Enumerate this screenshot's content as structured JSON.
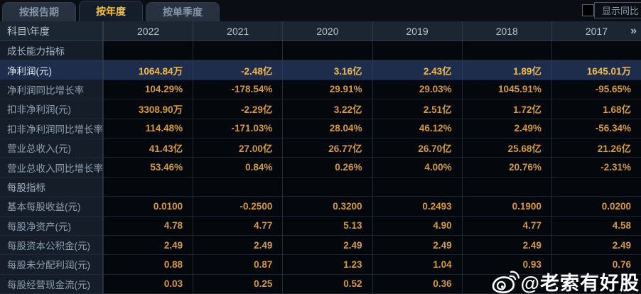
{
  "tabs": [
    {
      "label": "按报告期",
      "active": false
    },
    {
      "label": "按年度",
      "active": true
    },
    {
      "label": "按单季度",
      "active": false
    }
  ],
  "yoy_toggle": {
    "label": "显示同比",
    "checked": false
  },
  "table": {
    "corner_header": "科目\\年度",
    "years": [
      "2022",
      "2021",
      "2020",
      "2019",
      "2018",
      "2017"
    ],
    "more_years_icon": "»",
    "rows": [
      {
        "type": "section",
        "highlight": false,
        "label": "成长能力指标",
        "values": [
          "",
          "",
          "",
          "",
          "",
          ""
        ]
      },
      {
        "type": "data",
        "highlight": true,
        "label": "净利润(元)",
        "values": [
          "1064.84万",
          "-2.48亿",
          "3.16亿",
          "2.43亿",
          "1.89亿",
          "1645.01万"
        ]
      },
      {
        "type": "data",
        "highlight": false,
        "label": "净利润同比增长率",
        "values": [
          "104.29%",
          "-178.54%",
          "29.91%",
          "29.03%",
          "1045.91%",
          "-95.65%"
        ]
      },
      {
        "type": "data",
        "highlight": false,
        "label": "扣非净利润(元)",
        "values": [
          "3308.90万",
          "-2.29亿",
          "3.22亿",
          "2.51亿",
          "1.72亿",
          "1.68亿"
        ]
      },
      {
        "type": "data",
        "highlight": false,
        "label": "扣非净利润同比增长率",
        "values": [
          "114.48%",
          "-171.03%",
          "28.04%",
          "46.12%",
          "2.49%",
          "-56.34%"
        ]
      },
      {
        "type": "data",
        "highlight": false,
        "label": "营业总收入(元)",
        "values": [
          "41.43亿",
          "27.00亿",
          "26.77亿",
          "26.70亿",
          "25.68亿",
          "21.26亿"
        ]
      },
      {
        "type": "data",
        "highlight": false,
        "label": "营业总收入同比增长率",
        "values": [
          "53.46%",
          "0.84%",
          "0.26%",
          "4.00%",
          "20.76%",
          "-2.31%"
        ]
      },
      {
        "type": "section",
        "highlight": false,
        "label": "每股指标",
        "values": [
          "",
          "",
          "",
          "",
          "",
          ""
        ]
      },
      {
        "type": "data",
        "highlight": false,
        "label": "基本每股收益(元)",
        "values": [
          "0.0100",
          "-0.2500",
          "0.3200",
          "0.2493",
          "0.1900",
          "0.0200"
        ]
      },
      {
        "type": "data",
        "highlight": false,
        "label": "每股净资产(元)",
        "values": [
          "4.78",
          "4.77",
          "5.13",
          "4.90",
          "4.77",
          "4.58"
        ]
      },
      {
        "type": "data",
        "highlight": false,
        "label": "每股资本公积金(元)",
        "values": [
          "2.49",
          "2.49",
          "2.49",
          "2.49",
          "2.49",
          "2.49"
        ]
      },
      {
        "type": "data",
        "highlight": false,
        "label": "每股未分配利润(元)",
        "values": [
          "0.88",
          "0.87",
          "1.23",
          "1.04",
          "0.93",
          "0.76"
        ]
      },
      {
        "type": "data",
        "highlight": false,
        "label": "每股经营现金流(元)",
        "values": [
          "0.03",
          "0.25",
          "0.52",
          "0.36",
          "",
          ""
        ]
      }
    ]
  },
  "watermark": {
    "text": "@老索有好股"
  }
}
